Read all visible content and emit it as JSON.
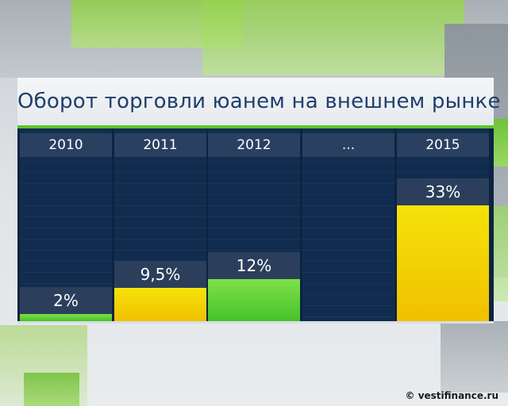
{
  "chart_data": {
    "type": "bar",
    "title": "Оборот торговли юанем на внешнем рынке",
    "categories": [
      "2010",
      "2011",
      "2012",
      "...",
      "2015"
    ],
    "values": [
      2,
      9.5,
      12,
      null,
      33
    ],
    "value_labels": [
      "2%",
      "9,5%",
      "12%",
      "",
      "33%"
    ],
    "bar_colors": [
      "#47c22a",
      "#f0c000",
      "#47c22a",
      null,
      "#f0c000"
    ],
    "ylim": [
      0,
      36
    ],
    "grid": true
  },
  "credit": "© vestifinance.ru"
}
